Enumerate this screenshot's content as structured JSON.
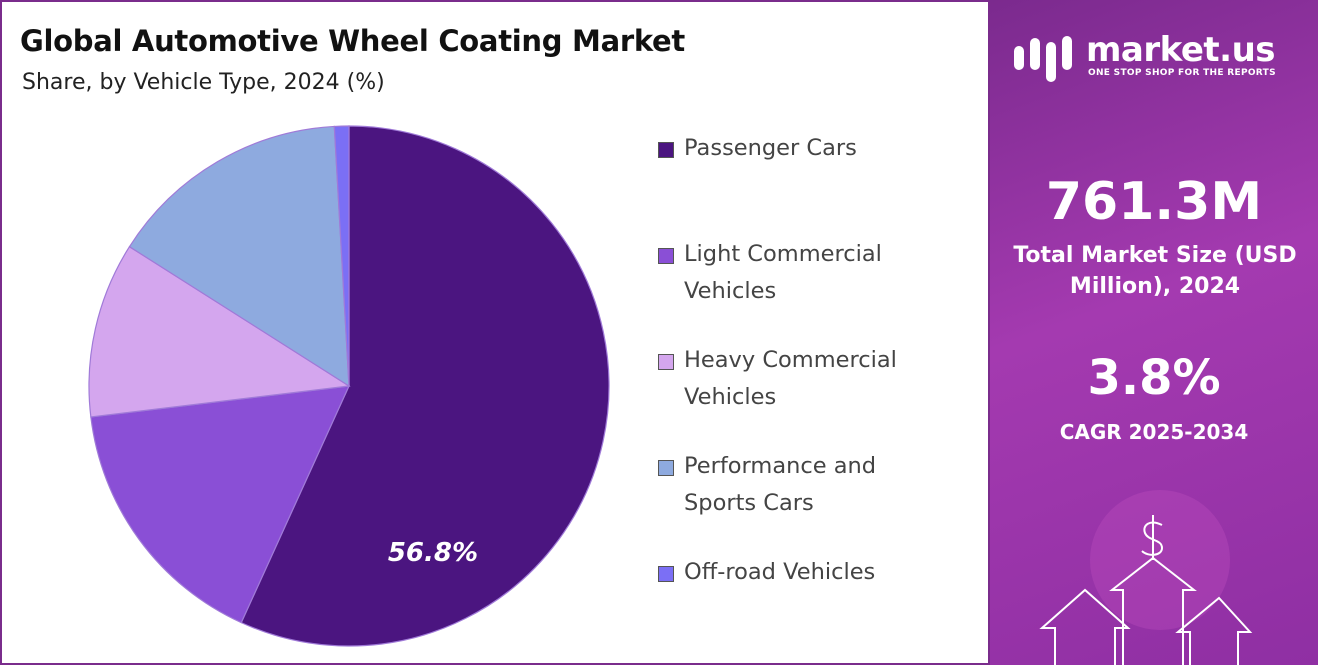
{
  "chart_data": {
    "type": "pie",
    "title": "Global Automotive Wheel Coating Market",
    "subtitle": "Share, by Vehicle Type, 2024 (%)",
    "categories": [
      "Passenger Cars",
      "Light Commercial Vehicles",
      "Heavy Commercial Vehicles",
      "Performance and Sports Cars",
      "Off-road Vehicles"
    ],
    "values": [
      56.8,
      16.3,
      10.9,
      15.1,
      0.9
    ],
    "value_labels": [
      "56.8%",
      null,
      null,
      null,
      null
    ],
    "colors": [
      "#4b1580",
      "#8a4fd6",
      "#d4a6ee",
      "#8eaadf",
      "#7b6ff5"
    ],
    "legend": "right"
  },
  "panel": {
    "brand": "market.us",
    "tagline": "ONE STOP SHOP FOR THE REPORTS",
    "market_size": "761.3M",
    "market_size_label": "Total Market Size (USD Million), 2024",
    "cagr": "3.8%",
    "cagr_label": "CAGR 2025-2034"
  }
}
